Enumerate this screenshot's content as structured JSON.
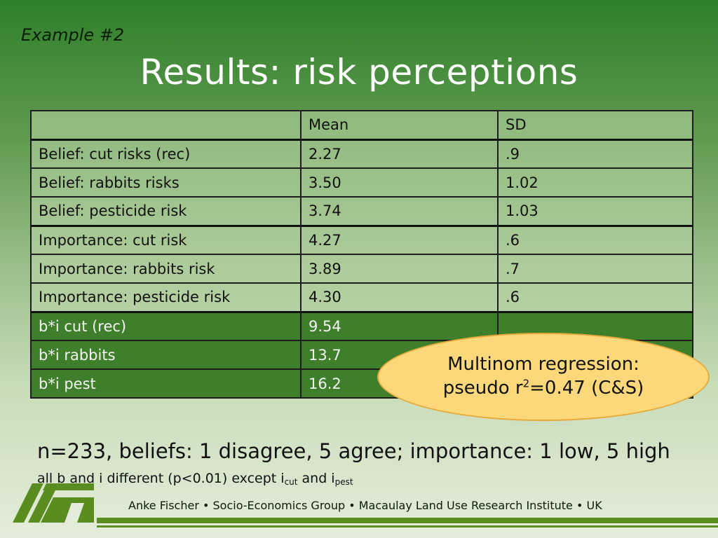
{
  "header": {
    "example": "Example #2",
    "title": "Results: risk perceptions"
  },
  "table": {
    "columns": [
      "",
      "Mean",
      "SD"
    ],
    "rows": [
      {
        "label": "Belief: cut risks (rec)",
        "mean": "2.27",
        "sd": ".9"
      },
      {
        "label": "Belief: rabbits risks",
        "mean": "3.50",
        "sd": "1.02"
      },
      {
        "label": "Belief: pesticide risk",
        "mean": "3.74",
        "sd": "1.03"
      },
      {
        "label": "Importance: cut risk",
        "mean": "4.27",
        "sd": ".6"
      },
      {
        "label": "Importance: rabbits risk",
        "mean": "3.89",
        "sd": ".7"
      },
      {
        "label": "Importance: pesticide risk",
        "mean": "4.30",
        "sd": ".6"
      },
      {
        "label": "b*i cut (rec)",
        "mean": "9.54",
        "sd": ""
      },
      {
        "label": "b*i rabbits",
        "mean": "13.7",
        "sd": ""
      },
      {
        "label": "b*i pest",
        "mean": "16.2",
        "sd": ""
      }
    ]
  },
  "callout": {
    "line1": "Multinom regression:",
    "line2_prefix": "pseudo r",
    "line2_sup": "2",
    "line2_suffix": "=0.47 (C&S)"
  },
  "notes": {
    "line1": "n=233, beliefs: 1 disagree, 5 agree; importance: 1 low, 5 high",
    "line2_a": "all b and i different (p<0.01) except i",
    "line2_sub1": "cut",
    "line2_b": " and i",
    "line2_sub2": "pest"
  },
  "footer": {
    "text": "Anke Fischer • Socio-Economics Group • Macaulay Land Use Research Institute • UK"
  },
  "colors": {
    "header_green": "#2e7f2a",
    "dark_row": "#3f7f2b",
    "callout_fill": "#fdd87a",
    "logo_green": "#5a8c1f"
  }
}
